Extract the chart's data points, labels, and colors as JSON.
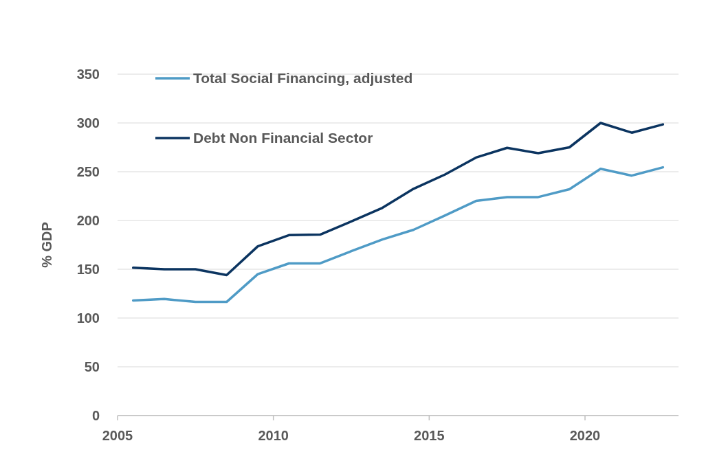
{
  "chart_data": {
    "type": "line",
    "ylabel": "% GDP",
    "xlim": [
      2005,
      2023
    ],
    "xticks": [
      2005,
      2010,
      2015,
      2020
    ],
    "ylim": [
      0,
      350
    ],
    "yticks": [
      0,
      50,
      100,
      150,
      200,
      250,
      300,
      350
    ],
    "grid": "y",
    "legend": "top left",
    "marker": "none",
    "line_style": "solid",
    "x": [
      2005.5,
      2006.5,
      2007.5,
      2008.5,
      2009.5,
      2010.5,
      2011.5,
      2012.5,
      2013.5,
      2014.5,
      2015.5,
      2016.5,
      2017.5,
      2018.5,
      2019.5,
      2020.5,
      2021.5,
      2022.5
    ],
    "series": [
      {
        "name": "Total Social Financing, adjusted",
        "color": "#4f9bc6",
        "values": [
          118,
          119.5,
          116.5,
          116.5,
          145,
          156,
          156,
          168.5,
          180.5,
          190.5,
          205,
          220,
          224,
          224,
          232,
          253,
          246,
          254.5
        ]
      },
      {
        "name": "Debt Non Financial Sector",
        "color": "#0b3460",
        "values": [
          151.5,
          150,
          150,
          144,
          173.5,
          185,
          185.5,
          199,
          213,
          232.5,
          247,
          264.5,
          274.5,
          269,
          275,
          300,
          290,
          298.5
        ]
      }
    ]
  }
}
